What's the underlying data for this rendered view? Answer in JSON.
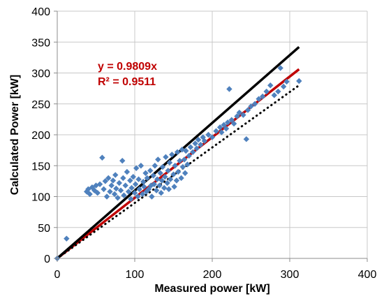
{
  "chart_data": {
    "type": "scatter",
    "title": "",
    "xlabel": "Measured power [kW]",
    "ylabel": "Calculated Power [kW]",
    "xlim": [
      0,
      400
    ],
    "ylim": [
      0,
      400
    ],
    "xticks": [
      0,
      100,
      200,
      300,
      400
    ],
    "yticks": [
      0,
      50,
      100,
      150,
      200,
      250,
      300,
      350,
      400
    ],
    "grid": true,
    "legend": "none",
    "colors": {
      "points": "#4F81BD",
      "fit_line": "#C00000",
      "identity_line": "#000000",
      "dotted_line": "#000000",
      "grid": "#C8C8C8"
    },
    "annotations": [
      {
        "text": "y = 0.9809x",
        "color": "#C00000"
      },
      {
        "text": "R² = 0.9511",
        "color": "#C00000"
      }
    ],
    "series": [
      {
        "kind": "scatter",
        "color": "#4F81BD",
        "points": [
          [
            0,
            0
          ],
          [
            12,
            32
          ],
          [
            38,
            108
          ],
          [
            40,
            112
          ],
          [
            42,
            104
          ],
          [
            45,
            115
          ],
          [
            48,
            110
          ],
          [
            50,
            118
          ],
          [
            52,
            106
          ],
          [
            55,
            120
          ],
          [
            58,
            163
          ],
          [
            60,
            112
          ],
          [
            62,
            125
          ],
          [
            64,
            100
          ],
          [
            66,
            130
          ],
          [
            68,
            108
          ],
          [
            70,
            118
          ],
          [
            72,
            126
          ],
          [
            74,
            104
          ],
          [
            75,
            135
          ],
          [
            76,
            113
          ],
          [
            78,
            98
          ],
          [
            80,
            122
          ],
          [
            82,
            110
          ],
          [
            84,
            158
          ],
          [
            85,
            130
          ],
          [
            86,
            102
          ],
          [
            88,
            118
          ],
          [
            90,
            140
          ],
          [
            92,
            108
          ],
          [
            94,
            126
          ],
          [
            95,
            96
          ],
          [
            96,
            114
          ],
          [
            98,
            132
          ],
          [
            100,
            106
          ],
          [
            101,
            120
          ],
          [
            102,
            146
          ],
          [
            104,
            100
          ],
          [
            105,
            128
          ],
          [
            106,
            112
          ],
          [
            108,
            150
          ],
          [
            110,
            104
          ],
          [
            111,
            124
          ],
          [
            112,
            116
          ],
          [
            114,
            138
          ],
          [
            115,
            108
          ],
          [
            116,
            130
          ],
          [
            118,
            112
          ],
          [
            120,
            142
          ],
          [
            121,
            118
          ],
          [
            122,
            100
          ],
          [
            124,
            134
          ],
          [
            125,
            120
          ],
          [
            126,
            150
          ],
          [
            128,
            110
          ],
          [
            129,
            128
          ],
          [
            130,
            160
          ],
          [
            132,
            118
          ],
          [
            133,
            138
          ],
          [
            134,
            106
          ],
          [
            135,
            126
          ],
          [
            136,
            148
          ],
          [
            138,
            114
          ],
          [
            139,
            132
          ],
          [
            140,
            164
          ],
          [
            142,
            122
          ],
          [
            143,
            142
          ],
          [
            144,
            112
          ],
          [
            145,
            155
          ],
          [
            146,
            128
          ],
          [
            148,
            168
          ],
          [
            150,
            136
          ],
          [
            151,
            116
          ],
          [
            152,
            150
          ],
          [
            154,
            126
          ],
          [
            155,
            172
          ],
          [
            156,
            140
          ],
          [
            158,
            158
          ],
          [
            160,
            130
          ],
          [
            161,
            176
          ],
          [
            162,
            148
          ],
          [
            164,
            160
          ],
          [
            165,
            138
          ],
          [
            166,
            174
          ],
          [
            168,
            152
          ],
          [
            170,
            166
          ],
          [
            172,
            180
          ],
          [
            175,
            172
          ],
          [
            178,
            186
          ],
          [
            180,
            178
          ],
          [
            182,
            192
          ],
          [
            185,
            184
          ],
          [
            188,
            196
          ],
          [
            190,
            190
          ],
          [
            195,
            200
          ],
          [
            200,
            196
          ],
          [
            205,
            206
          ],
          [
            210,
            212
          ],
          [
            212,
            204
          ],
          [
            215,
            216
          ],
          [
            218,
            210
          ],
          [
            220,
            220
          ],
          [
            222,
            274
          ],
          [
            225,
            224
          ],
          [
            228,
            218
          ],
          [
            232,
            230
          ],
          [
            235,
            236
          ],
          [
            240,
            232
          ],
          [
            244,
            193
          ],
          [
            246,
            240
          ],
          [
            250,
            246
          ],
          [
            255,
            250
          ],
          [
            260,
            258
          ],
          [
            265,
            262
          ],
          [
            270,
            270
          ],
          [
            275,
            280
          ],
          [
            280,
            264
          ],
          [
            285,
            270
          ],
          [
            288,
            308
          ],
          [
            292,
            278
          ],
          [
            296,
            286
          ],
          [
            312,
            287
          ]
        ]
      },
      {
        "kind": "line",
        "name": "y = 0.9809x",
        "color": "#C00000",
        "style": "solid",
        "points": [
          [
            0,
            0
          ],
          [
            312,
            306
          ]
        ]
      },
      {
        "kind": "line",
        "color": "#000000",
        "style": "solid",
        "points": [
          [
            0,
            0
          ],
          [
            312,
            342
          ]
        ]
      },
      {
        "kind": "line",
        "color": "#000000",
        "style": "dotted",
        "points": [
          [
            0,
            0
          ],
          [
            312,
            280
          ]
        ]
      }
    ]
  }
}
